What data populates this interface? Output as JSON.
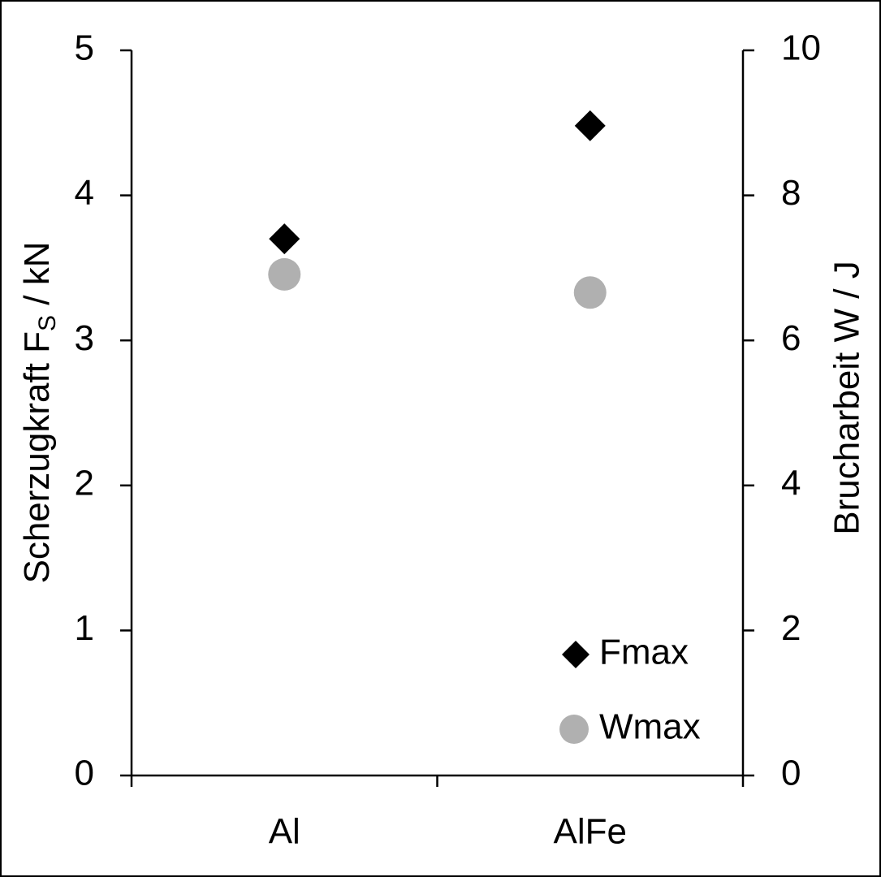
{
  "chart_data": {
    "type": "scatter",
    "y_label": [
      "Scherzugkraft F",
      "S",
      " / kN"
    ],
    "y2_label": "Brucharbeit W / J",
    "categories": [
      "Al",
      "AlFe"
    ],
    "series": [
      {
        "name": "Fmax",
        "color": "#000000",
        "marker": "diamond",
        "values": [
          3.7,
          4.48
        ]
      },
      {
        "name": "Wmax",
        "color": "#b0b0b0",
        "marker": "circle",
        "axis": "y2",
        "values": [
          6.91,
          6.66
        ]
      }
    ],
    "ylim": [
      0,
      5
    ],
    "yticks": [
      0,
      1,
      2,
      3,
      4,
      5
    ],
    "y2lim": [
      0,
      10
    ],
    "y2ticks": [
      0,
      2,
      4,
      6,
      8,
      10
    ],
    "legend": "lower right",
    "grid": false
  }
}
